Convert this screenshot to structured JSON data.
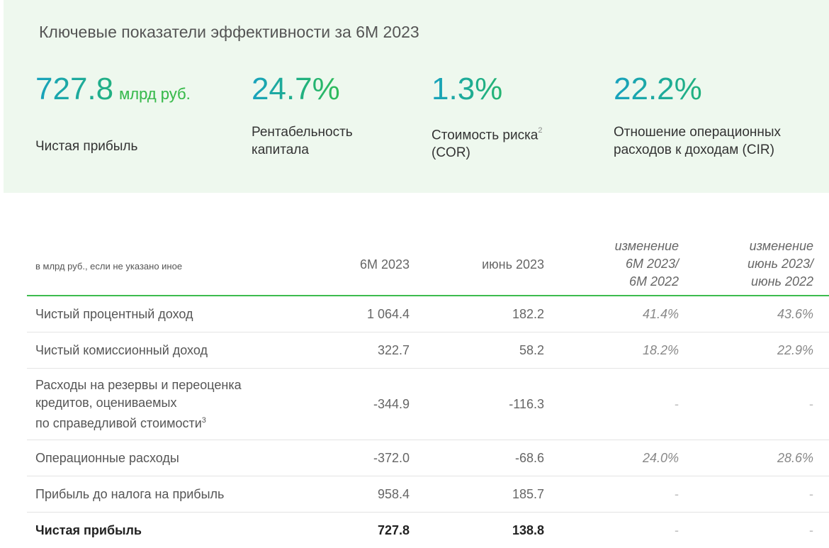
{
  "header": {
    "title": "Ключевые показатели эффективности за 6М 2023"
  },
  "kpis": [
    {
      "value": "727.8",
      "unit": "млрд руб.",
      "label_line1": "Чистая прибыль",
      "label_line2": ""
    },
    {
      "value": "24.7%",
      "unit": "",
      "label_line1": "Рентабельность",
      "label_line2": "капитала"
    },
    {
      "value": "1.3%",
      "unit": "",
      "label_line1": "Стоимость риска",
      "footnote": "2",
      "label_line2": "(COR)"
    },
    {
      "value": "22.2%",
      "unit": "",
      "label_line1": "Отношение операционных",
      "label_line2": "расходов к доходам (CIR)"
    }
  ],
  "table": {
    "units_note": "в млрд руб., если не указано иное",
    "columns": {
      "c1": "6М 2023",
      "c2": "июнь 2023",
      "c3_line1": "изменение",
      "c3_line2": "6М 2023/",
      "c3_line3": "6М 2022",
      "c4_line1": "изменение",
      "c4_line2": "июнь 2023/",
      "c4_line3": "июнь 2022"
    },
    "rows": [
      {
        "label": "Чистый процентный доход",
        "v1": "1 064.4",
        "v2": "182.2",
        "v3": "41.4%",
        "v4": "43.6%"
      },
      {
        "label": "Чистый комиссионный доход",
        "v1": "322.7",
        "v2": "58.2",
        "v3": "18.2%",
        "v4": "22.9%"
      },
      {
        "label_line1": "Расходы на резервы и переоценка",
        "label_line2": "кредитов, оцениваемых",
        "label_line3": "по справедливой стоимости",
        "footnote": "3",
        "v1": "-344.9",
        "v2": "-116.3",
        "v3": "-",
        "v4": "-"
      },
      {
        "label": "Операционные расходы",
        "v1": "-372.0",
        "v2": "-68.6",
        "v3": "24.0%",
        "v4": "28.6%"
      },
      {
        "label": "Прибыль до налога на прибыль",
        "v1": "958.4",
        "v2": "185.7",
        "v3": "-",
        "v4": "-"
      },
      {
        "label": "Чистая прибыль",
        "v1": "727.8",
        "v2": "138.8",
        "v3": "-",
        "v4": "-"
      }
    ]
  },
  "colors": {
    "panel_bg": "#eef8ee",
    "accent_green": "#3dbb4e",
    "accent_teal": "#18a2bf"
  }
}
